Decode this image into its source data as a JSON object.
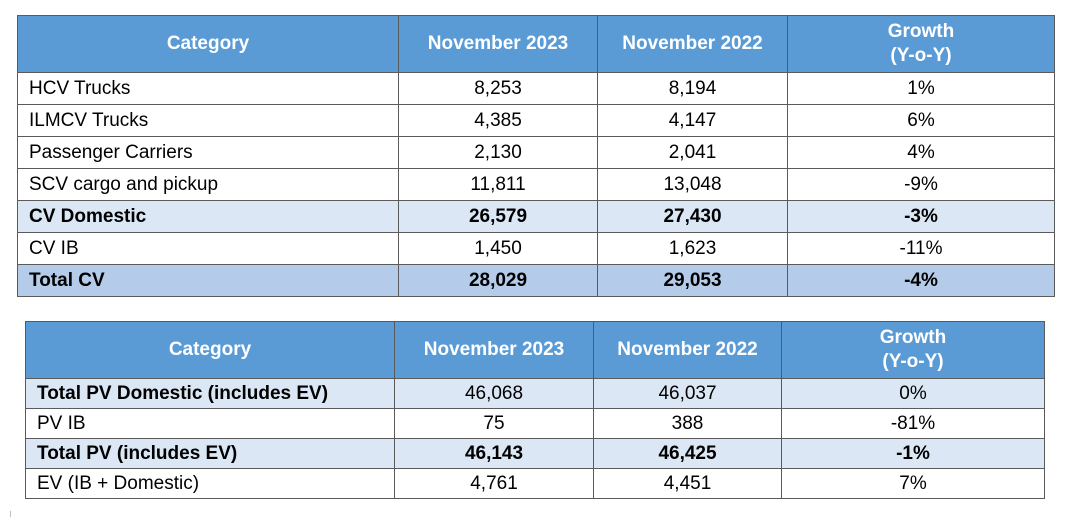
{
  "cv_table": {
    "headers": [
      "Category",
      "November 2023",
      "November 2022",
      "Growth",
      "(Y-o-Y)"
    ],
    "rows": [
      {
        "category": "HCV Trucks",
        "nov2023": "8,253",
        "nov2022": "8,194",
        "growth": "1%"
      },
      {
        "category": "ILMCV Trucks",
        "nov2023": "4,385",
        "nov2022": "4,147",
        "growth": "6%"
      },
      {
        "category": "Passenger Carriers",
        "nov2023": "2,130",
        "nov2022": "2,041",
        "growth": "4%"
      },
      {
        "category": "SCV cargo and pickup",
        "nov2023": "11,811",
        "nov2022": "13,048",
        "growth": "-9%"
      },
      {
        "category": "CV Domestic",
        "nov2023": "26,579",
        "nov2022": "27,430",
        "growth": "-3%"
      },
      {
        "category": "CV IB",
        "nov2023": "1,450",
        "nov2022": "1,623",
        "growth": "-11%"
      },
      {
        "category": "Total CV",
        "nov2023": "28,029",
        "nov2022": "29,053",
        "growth": "-4%"
      }
    ]
  },
  "pv_table": {
    "headers": [
      "Category",
      "November 2023",
      "November 2022",
      "Growth",
      "(Y-o-Y)"
    ],
    "rows": [
      {
        "category": "Total PV Domestic (includes EV)",
        "nov2023": "46,068",
        "nov2022": "46,037",
        "growth": "0%"
      },
      {
        "category": "PV IB",
        "nov2023": "75",
        "nov2022": "388",
        "growth": "-81%"
      },
      {
        "category": "Total PV (includes EV)",
        "nov2023": "46,143",
        "nov2022": "46,425",
        "growth": "-1%"
      },
      {
        "category": "EV (IB + Domestic)",
        "nov2023": "4,761",
        "nov2022": "4,451",
        "growth": "7%"
      }
    ]
  },
  "colors": {
    "header_bg": "#5b9bd5",
    "header_text": "#ffffff",
    "highlight_light": "#dbe7f4",
    "highlight_dark": "#b4cbe9",
    "border": "#5a5a5a"
  }
}
